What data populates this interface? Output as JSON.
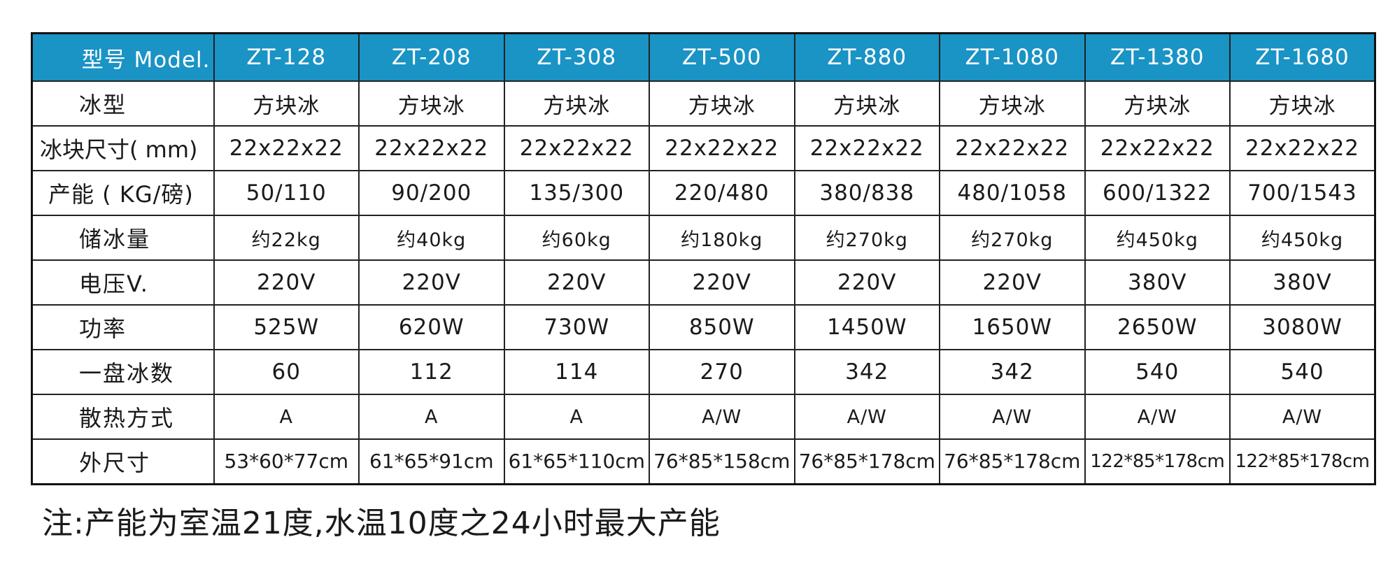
{
  "table": {
    "header_label": "型号 Model.",
    "models": [
      "ZT-128",
      "ZT-208",
      "ZT-308",
      "ZT-500",
      "ZT-880",
      "ZT-1080",
      "ZT-1380",
      "ZT-1680"
    ],
    "rows": [
      {
        "label": "冰型",
        "values": [
          "方块冰",
          "方块冰",
          "方块冰",
          "方块冰",
          "方块冰",
          "方块冰",
          "方块冰",
          "方块冰"
        ]
      },
      {
        "label": "冰块尺寸( mm)",
        "values": [
          "22x22x22",
          "22x22x22",
          "22x22x22",
          "22x22x22",
          "22x22x22",
          "22x22x22",
          "22x22x22",
          "22x22x22"
        ]
      },
      {
        "label": "产能 ( KG/磅)",
        "values": [
          "50/110",
          "90/200",
          "135/300",
          "220/480",
          "380/838",
          "480/1058",
          "600/1322",
          "700/1543"
        ]
      },
      {
        "label": "储冰量",
        "values": [
          "约22kg",
          "约40kg",
          "约60kg",
          "约180kg",
          "约270kg",
          "约270kg",
          "约450kg",
          "约450kg"
        ]
      },
      {
        "label": "电压V.",
        "values": [
          "220V",
          "220V",
          "220V",
          "220V",
          "220V",
          "220V",
          "380V",
          "380V"
        ]
      },
      {
        "label": "功率",
        "values": [
          "525W",
          "620W",
          "730W",
          "850W",
          "1450W",
          "1650W",
          "2650W",
          "3080W"
        ]
      },
      {
        "label": "一盘冰数",
        "values": [
          "60",
          "112",
          "114",
          "270",
          "342",
          "342",
          "540",
          "540"
        ]
      },
      {
        "label": "散热方式",
        "values": [
          "A",
          "A",
          "A",
          "A/W",
          "A/W",
          "A/W",
          "A/W",
          "A/W"
        ]
      },
      {
        "label": "外尺寸",
        "values": [
          "53*60*77cm",
          "61*65*91cm",
          "61*65*110cm",
          "76*85*158cm",
          "76*85*178cm",
          "76*85*178cm",
          "122*85*178cm",
          "122*85*178cm"
        ]
      }
    ]
  },
  "note": "注:产能为室温21度,水温10度之24小时最大产能",
  "colors": {
    "header_background": "#1a93c5",
    "header_text": "#ffffff",
    "border": "#222222"
  }
}
